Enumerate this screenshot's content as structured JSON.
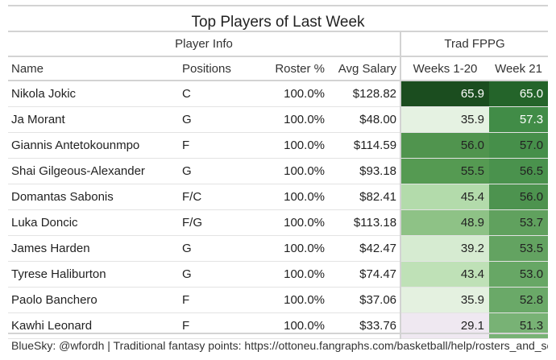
{
  "title": "Top Players of Last Week",
  "groups": {
    "player_info": "Player Info",
    "trad_fppg": "Trad FPPG"
  },
  "columns": {
    "name": "Name",
    "positions": "Positions",
    "roster": "Roster %",
    "salary": "Avg Salary",
    "weeks": "Weeks 1-20",
    "week21": "Week 21"
  },
  "rows": [
    {
      "name": "Nikola Jokic",
      "pos": "C",
      "roster": "100.0%",
      "salary": "$128.82",
      "weeks": "65.9",
      "week21": "65.0",
      "weeks_color": "#1b4d1f",
      "week21_color": "#24642a",
      "weeks_text": "#ffffff",
      "week21_text": "#ffffff"
    },
    {
      "name": "Ja Morant",
      "pos": "G",
      "roster": "100.0%",
      "salary": "$48.00",
      "weeks": "35.9",
      "week21": "57.3",
      "weeks_color": "#e5f2e2",
      "week21_color": "#418c47",
      "weeks_text": "#222222",
      "week21_text": "#ffffff"
    },
    {
      "name": "Giannis Antetokounmpo",
      "pos": "F",
      "roster": "100.0%",
      "salary": "$114.59",
      "weeks": "56.0",
      "week21": "57.0",
      "weeks_color": "#50944e",
      "week21_color": "#468f4a",
      "weeks_text": "#222222",
      "week21_text": "#222222"
    },
    {
      "name": "Shai Gilgeous-Alexander",
      "pos": "G",
      "roster": "100.0%",
      "salary": "$93.18",
      "weeks": "55.5",
      "week21": "56.5",
      "weeks_color": "#559a52",
      "week21_color": "#4a924d",
      "weeks_text": "#222222",
      "week21_text": "#222222"
    },
    {
      "name": "Domantas Sabonis",
      "pos": "F/C",
      "roster": "100.0%",
      "salary": "$82.41",
      "weeks": "45.4",
      "week21": "56.0",
      "weeks_color": "#b3dbab",
      "week21_color": "#4d934f",
      "weeks_text": "#222222",
      "week21_text": "#222222"
    },
    {
      "name": "Luka Doncic",
      "pos": "F/G",
      "roster": "100.0%",
      "salary": "$113.18",
      "weeks": "48.9",
      "week21": "53.7",
      "weeks_color": "#8ec286",
      "week21_color": "#60a15e",
      "weeks_text": "#222222",
      "week21_text": "#222222"
    },
    {
      "name": "James Harden",
      "pos": "G",
      "roster": "100.0%",
      "salary": "$42.47",
      "weeks": "39.2",
      "week21": "53.5",
      "weeks_color": "#d6ebd1",
      "week21_color": "#63a361",
      "weeks_text": "#222222",
      "week21_text": "#222222"
    },
    {
      "name": "Tyrese Haliburton",
      "pos": "G",
      "roster": "100.0%",
      "salary": "$74.47",
      "weeks": "43.4",
      "week21": "53.0",
      "weeks_color": "#bfe1b7",
      "week21_color": "#67a765",
      "weeks_text": "#222222",
      "week21_text": "#222222"
    },
    {
      "name": "Paolo Banchero",
      "pos": "F",
      "roster": "100.0%",
      "salary": "$37.06",
      "weeks": "35.9",
      "week21": "52.8",
      "weeks_color": "#e4f1e0",
      "week21_color": "#6aa968",
      "weeks_text": "#222222",
      "week21_text": "#222222"
    },
    {
      "name": "Kawhi Leonard",
      "pos": "F",
      "roster": "100.0%",
      "salary": "$33.76",
      "weeks": "29.1",
      "week21": "51.3",
      "weeks_color": "#efe8f1",
      "week21_color": "#78b275",
      "weeks_text": "#222222",
      "week21_text": "#222222"
    }
  ],
  "footer": "BlueSky: @wfordh | Traditional fantasy points: https://ottoneu.fangraphs.com/basketball/help/rosters_and_scoring"
}
